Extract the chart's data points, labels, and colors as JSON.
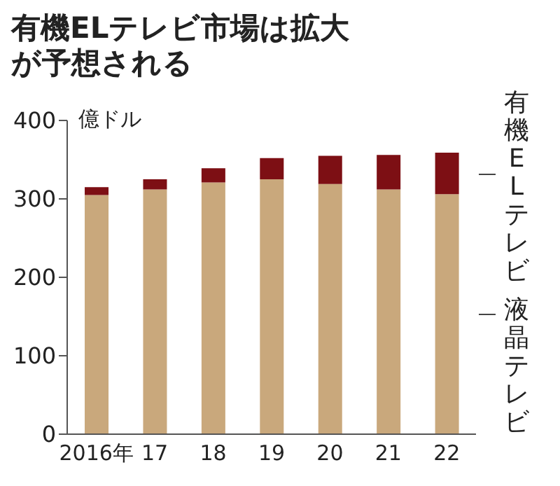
{
  "chart_data": {
    "type": "bar",
    "title": "有機ELテレビ市場は拡大が予想される",
    "ylabel": "億ドル",
    "categories": [
      "2016年",
      "17",
      "18",
      "19",
      "20",
      "21",
      "22"
    ],
    "stacked": true,
    "series": [
      {
        "name": "液晶テレビ",
        "color": "#c9a87c",
        "values": [
          305,
          312,
          321,
          325,
          319,
          312,
          306
        ]
      },
      {
        "name": "有機ELテレビ",
        "color": "#7d0f14",
        "values": [
          10,
          13,
          18,
          27,
          36,
          44,
          53
        ]
      }
    ],
    "ylim": [
      0,
      400
    ],
    "yticks": [
      0,
      100,
      200,
      300,
      400
    ],
    "grid": false
  }
}
